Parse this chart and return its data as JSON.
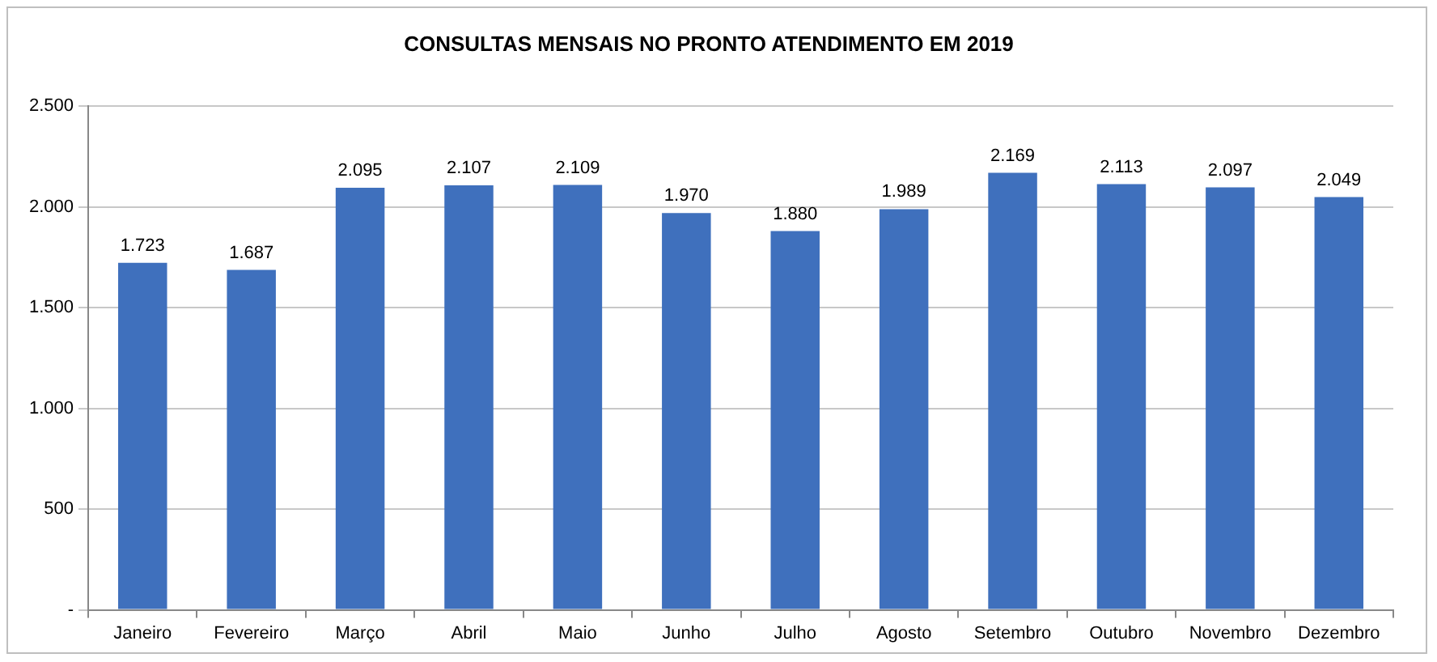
{
  "chart_data": {
    "type": "bar",
    "title": "CONSULTAS MENSAIS NO PRONTO ATENDIMENTO EM 2019",
    "categories": [
      "Janeiro",
      "Fevereiro",
      "Março",
      "Abril",
      "Maio",
      "Junho",
      "Julho",
      "Agosto",
      "Setembro",
      "Outubro",
      "Novembro",
      "Dezembro"
    ],
    "values": [
      1723,
      1687,
      2095,
      2107,
      2109,
      1970,
      1880,
      1989,
      2169,
      2113,
      2097,
      2049
    ],
    "value_labels": [
      "1.723",
      "1.687",
      "2.095",
      "2.107",
      "2.109",
      "1.970",
      "1.880",
      "1.989",
      "2.169",
      "2.113",
      "2.097",
      "2.049"
    ],
    "color": "#3f70bd",
    "ylim": [
      0,
      2500
    ],
    "yticks": [
      {
        "value": 0,
        "label": "-"
      },
      {
        "value": 500,
        "label": "500"
      },
      {
        "value": 1000,
        "label": "1.000"
      },
      {
        "value": 1500,
        "label": "1.500"
      },
      {
        "value": 2000,
        "label": "2.000"
      },
      {
        "value": 2500,
        "label": "2.500"
      }
    ],
    "grid": true,
    "legend": false
  }
}
